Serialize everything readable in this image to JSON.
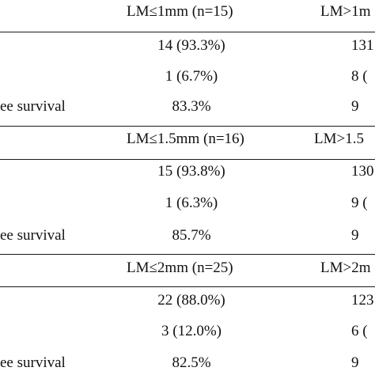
{
  "sections": [
    {
      "header": {
        "col1": "LM≤1mm (n=15)",
        "col2": "LM>1m"
      },
      "rows": [
        {
          "label": "",
          "col1": "14 (93.3%)",
          "col2": "131"
        },
        {
          "label": "",
          "col1": "1 (6.7%)",
          "col2": "8 ("
        },
        {
          "label": "ee survival",
          "col1": "83.3%",
          "col2": "9"
        }
      ]
    },
    {
      "header": {
        "col1": "LM≤1.5mm (n=16)",
        "col2": "LM>1.5"
      },
      "rows": [
        {
          "label": "",
          "col1": "15 (93.8%)",
          "col2": "130"
        },
        {
          "label": "",
          "col1": "1 (6.3%)",
          "col2": "9 ("
        },
        {
          "label": "ee survival",
          "col1": "85.7%",
          "col2": "9"
        }
      ]
    },
    {
      "header": {
        "col1": "LM≤2mm (n=25)",
        "col2": "LM>2m"
      },
      "rows": [
        {
          "label": "",
          "col1": "22 (88.0%)",
          "col2": "123"
        },
        {
          "label": "",
          "col1": "3 (12.0%)",
          "col2": "6 ("
        },
        {
          "label": "ee survival",
          "col1": "82.5%",
          "col2": "9"
        }
      ]
    }
  ]
}
